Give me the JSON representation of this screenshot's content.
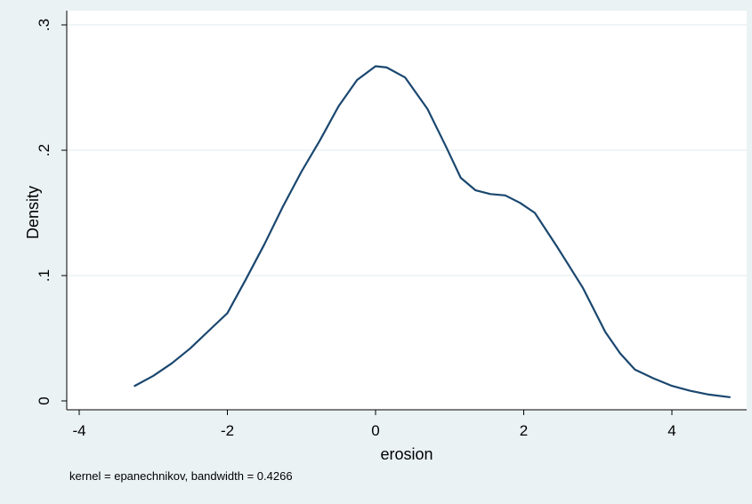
{
  "chart_data": {
    "type": "line",
    "title": "",
    "xlabel": "erosion",
    "ylabel": "Density",
    "note": "kernel = epanechnikov, bandwidth = 0.4266",
    "xlim": [
      -4,
      4.8
    ],
    "ylim": [
      0,
      0.3
    ],
    "x_ticks": [
      -4,
      -2,
      0,
      2,
      4
    ],
    "x_tick_labels": [
      "-4",
      "-2",
      "0",
      "2",
      "4"
    ],
    "y_ticks": [
      0,
      0.1,
      0.2,
      0.3
    ],
    "y_tick_labels": [
      "0",
      ".1",
      ".2",
      ".3"
    ],
    "grid": true,
    "legend": "none",
    "colors": {
      "background": "#eaf2f3",
      "plot_area": "#ffffff",
      "line": "#1a476f",
      "grid": "#eaf2f3"
    },
    "series": [
      {
        "x": [
          -3.25,
          -3.0,
          -2.75,
          -2.5,
          -2.25,
          -2.0,
          -1.75,
          -1.5,
          -1.25,
          -1.0,
          -0.75,
          -0.5,
          -0.25,
          0.0,
          0.15,
          0.4,
          0.7,
          0.95,
          1.15,
          1.35,
          1.55,
          1.75,
          1.95,
          2.15,
          2.45,
          2.8,
          3.1,
          3.3,
          3.5,
          3.75,
          4.0,
          4.25,
          4.5,
          4.78
        ],
        "y": [
          0.012,
          0.02,
          0.03,
          0.042,
          0.056,
          0.07,
          0.097,
          0.125,
          0.155,
          0.183,
          0.208,
          0.235,
          0.256,
          0.267,
          0.266,
          0.258,
          0.233,
          0.203,
          0.178,
          0.168,
          0.165,
          0.164,
          0.158,
          0.15,
          0.123,
          0.09,
          0.055,
          0.038,
          0.025,
          0.018,
          0.012,
          0.008,
          0.005,
          0.003
        ]
      }
    ]
  }
}
